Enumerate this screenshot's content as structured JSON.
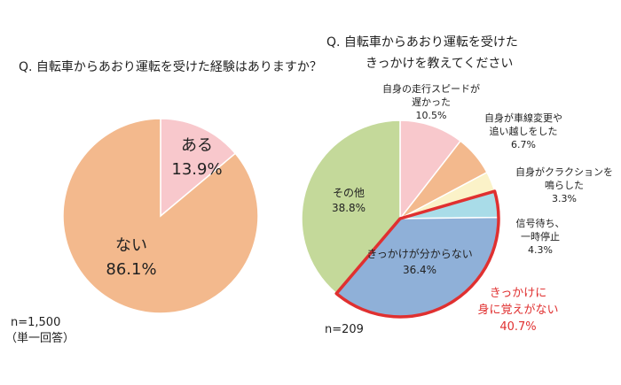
{
  "chart_data": [
    {
      "type": "pie",
      "title": "Q. 自転車からあおり運転を受けた経験はありますか？",
      "slices": [
        {
          "label": "ある",
          "value_label": "13.9%",
          "value": 13.9,
          "color": "#f8c8cc"
        },
        {
          "label": "ない",
          "value_label": "86.1%",
          "value": 86.1,
          "color": "#f3b98d"
        }
      ],
      "note_lines": [
        "n=1,500",
        "（単一回答）"
      ]
    },
    {
      "type": "pie",
      "title_lines": [
        "Q. 自転車からあおり運転を受けた",
        "きっかけを教えてください"
      ],
      "slices": [
        {
          "label_lines": [
            "自身の走行スピードが",
            "遅かった"
          ],
          "value_label": "10.5%",
          "value": 10.5,
          "color": "#f8c8cc"
        },
        {
          "label_lines": [
            "自身が車線変更や",
            "追い越しをした"
          ],
          "value_label": "6.7%",
          "value": 6.7,
          "color": "#f3b98d"
        },
        {
          "label_lines": [
            "自身がクラクションを",
            "鳴らした"
          ],
          "value_label": "3.3%",
          "value": 3.3,
          "color": "#fbf2c8"
        },
        {
          "label_lines": [
            "信号待ち、",
            "一時停止"
          ],
          "value_label": "4.3%",
          "value": 4.3,
          "color": "#a9dce8"
        },
        {
          "label_lines": [
            "きっかけが分からない"
          ],
          "value_label": "36.4%",
          "value": 36.4,
          "color": "#8fb0d8"
        },
        {
          "label_lines": [
            "その他"
          ],
          "value_label": "38.8%",
          "value": 38.8,
          "color": "#c4d99a"
        }
      ],
      "highlight": {
        "label_lines": [
          "きっかけに",
          "身に覚えがない"
        ],
        "value_label": "40.7%",
        "value": 40.7,
        "color": "#e03030"
      },
      "note": "n=209"
    }
  ]
}
